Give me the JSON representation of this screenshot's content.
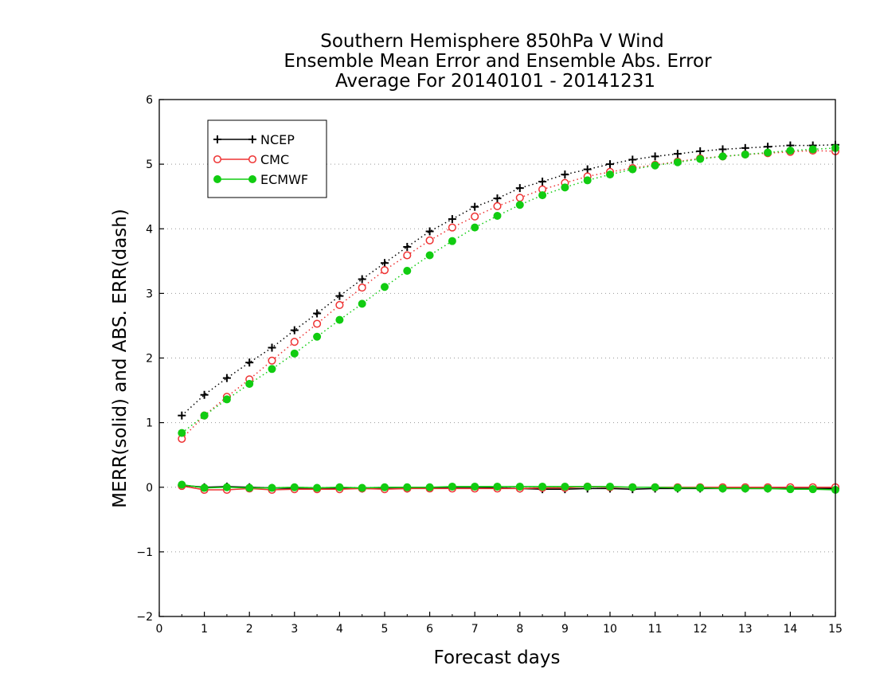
{
  "chart_data": {
    "type": "line",
    "title": [
      "Southern Hemisphere 850hPa V Wind",
      "Ensemble Mean Error and Ensemble Abs. Error",
      "Average For 20140101 - 20141231"
    ],
    "xlabel": "Forecast days",
    "ylabel": "MERR(solid) and ABS. ERR(dash)",
    "xlim": [
      0,
      15
    ],
    "ylim": [
      -2,
      6
    ],
    "xticks": [
      0,
      1,
      2,
      3,
      4,
      5,
      6,
      7,
      8,
      9,
      10,
      11,
      12,
      13,
      14,
      15
    ],
    "yticks": [
      -2,
      -1,
      0,
      1,
      2,
      3,
      4,
      5,
      6
    ],
    "ytick_labels": [
      "−2",
      "−1",
      "0",
      "1",
      "2",
      "3",
      "4",
      "5",
      "6"
    ],
    "grid": "horizontal dotted",
    "legend_position": "top-left",
    "x": [
      0.5,
      1,
      1.5,
      2,
      2.5,
      3,
      3.5,
      4,
      4.5,
      5,
      5.5,
      6,
      6.5,
      7,
      7.5,
      8,
      8.5,
      9,
      9.5,
      10,
      10.5,
      11,
      11.5,
      12,
      12.5,
      13,
      13.5,
      14,
      14.5,
      15
    ],
    "series": [
      {
        "name": "NCEP",
        "color": "#000000",
        "marker": "plus",
        "abs_err": [
          1.11,
          1.43,
          1.69,
          1.93,
          2.16,
          2.43,
          2.69,
          2.96,
          3.22,
          3.47,
          3.72,
          3.96,
          4.15,
          4.34,
          4.47,
          4.63,
          4.73,
          4.84,
          4.92,
          5.0,
          5.07,
          5.12,
          5.16,
          5.2,
          5.23,
          5.25,
          5.27,
          5.29,
          5.29,
          5.3
        ],
        "mean_err": [
          0.03,
          0.0,
          0.01,
          0.0,
          -0.01,
          -0.02,
          -0.02,
          -0.01,
          -0.02,
          -0.02,
          -0.02,
          -0.01,
          0.0,
          0.0,
          -0.01,
          -0.02,
          -0.03,
          -0.03,
          -0.02,
          -0.02,
          -0.03,
          -0.02,
          -0.02,
          -0.02,
          -0.02,
          -0.02,
          -0.02,
          -0.02,
          -0.02,
          -0.02
        ]
      },
      {
        "name": "CMC",
        "color": "#ee3333",
        "marker": "open-circle",
        "abs_err": [
          0.75,
          1.11,
          1.4,
          1.67,
          1.96,
          2.25,
          2.53,
          2.82,
          3.09,
          3.36,
          3.59,
          3.82,
          4.02,
          4.19,
          4.35,
          4.48,
          4.61,
          4.71,
          4.81,
          4.88,
          4.94,
          4.99,
          5.04,
          5.09,
          5.12,
          5.15,
          5.17,
          5.19,
          5.21,
          5.2
        ],
        "mean_err": [
          0.02,
          -0.04,
          -0.04,
          -0.02,
          -0.04,
          -0.03,
          -0.03,
          -0.03,
          -0.02,
          -0.03,
          -0.02,
          -0.02,
          -0.02,
          -0.02,
          -0.02,
          -0.02,
          -0.01,
          -0.01,
          0.01,
          0.0,
          0.0,
          0.0,
          0.0,
          0.0,
          0.0,
          0.0,
          0.0,
          0.0,
          0.0,
          0.0
        ]
      },
      {
        "name": "ECMWF",
        "color": "#11cc11",
        "marker": "filled-circle",
        "abs_err": [
          0.84,
          1.11,
          1.36,
          1.6,
          1.83,
          2.07,
          2.33,
          2.59,
          2.84,
          3.1,
          3.35,
          3.59,
          3.81,
          4.02,
          4.2,
          4.37,
          4.52,
          4.64,
          4.75,
          4.84,
          4.92,
          4.98,
          5.03,
          5.08,
          5.12,
          5.15,
          5.18,
          5.21,
          5.23,
          5.25
        ],
        "mean_err": [
          0.04,
          -0.01,
          0.0,
          -0.01,
          -0.01,
          0.0,
          -0.01,
          0.0,
          -0.01,
          0.0,
          0.0,
          0.0,
          0.01,
          0.01,
          0.01,
          0.01,
          0.01,
          0.01,
          0.01,
          0.01,
          0.0,
          0.0,
          -0.01,
          -0.01,
          -0.02,
          -0.02,
          -0.02,
          -0.03,
          -0.03,
          -0.04
        ]
      }
    ]
  }
}
